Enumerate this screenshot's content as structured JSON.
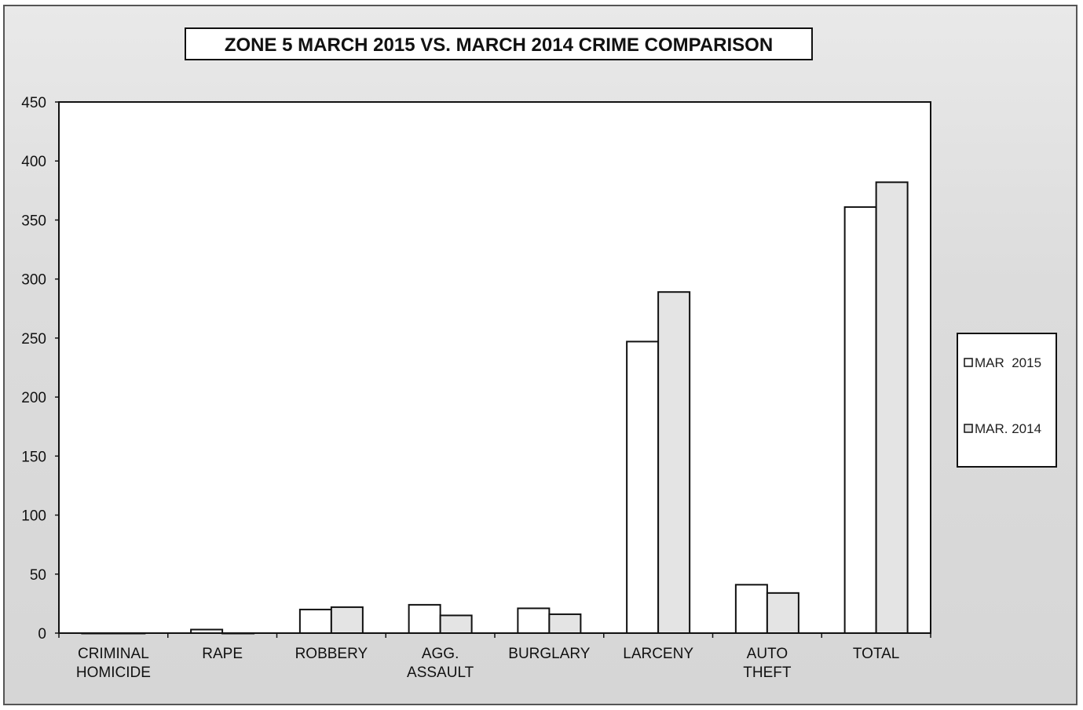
{
  "chart_data": {
    "type": "bar",
    "title": "ZONE 5  MARCH 2015 VS. MARCH 2014 CRIME COMPARISON",
    "categories": [
      [
        "CRIMINAL",
        "HOMICIDE"
      ],
      [
        "RAPE"
      ],
      [
        "ROBBERY"
      ],
      [
        "AGG.",
        "ASSAULT"
      ],
      [
        "BURGLARY"
      ],
      [
        "LARCENY"
      ],
      [
        "AUTO",
        "THEFT"
      ],
      [
        "TOTAL"
      ]
    ],
    "series": [
      {
        "name": "MAR  2015",
        "values": [
          0,
          3,
          20,
          24,
          21,
          247,
          41,
          361
        ],
        "color": "#ffffff"
      },
      {
        "name": "MAR. 2014",
        "values": [
          0,
          0,
          22,
          15,
          16,
          289,
          34,
          382
        ],
        "color": "#e4e4e4"
      }
    ],
    "ylim": [
      0,
      450
    ],
    "yticks": [
      0,
      50,
      100,
      150,
      200,
      250,
      300,
      350,
      400,
      450
    ],
    "grid": false,
    "legend": "right"
  }
}
